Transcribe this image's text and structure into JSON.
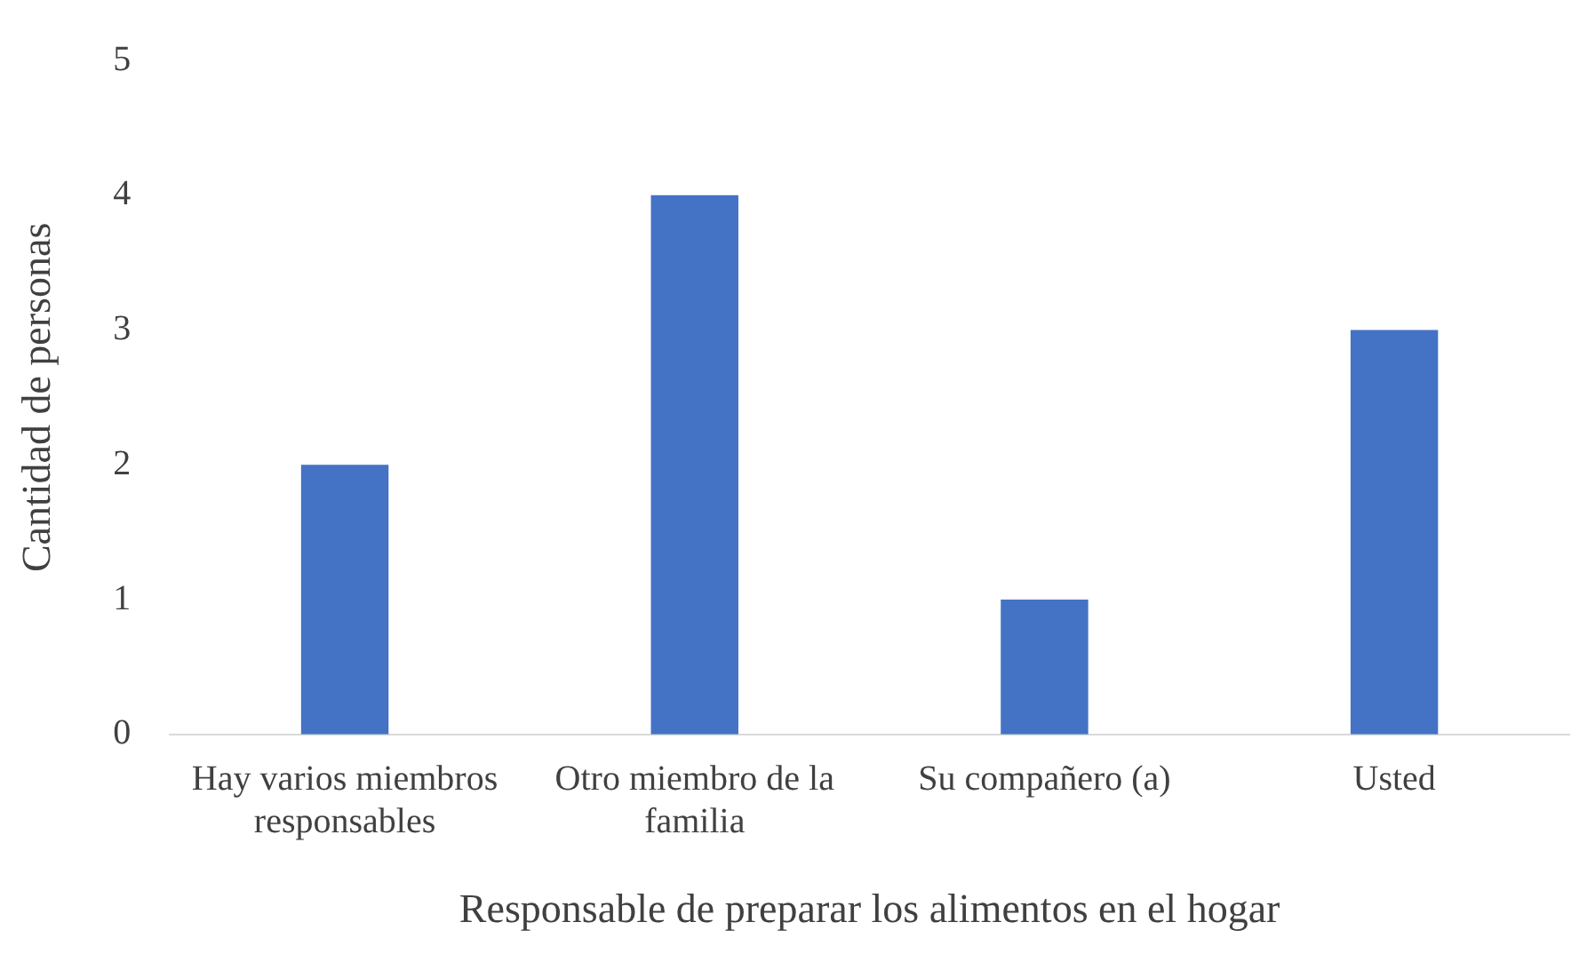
{
  "chart_data": {
    "type": "bar",
    "xlabel": "Responsable de preparar los alimentos en el hogar",
    "ylabel": "Cantidad de personas",
    "categories": [
      "Hay varios miembros responsables",
      "Otro miembro de la familia",
      "Su compañero (a)",
      "Usted"
    ],
    "values": [
      2,
      4,
      1,
      3
    ],
    "color": "#4472c4",
    "ylim": [
      0,
      5
    ],
    "yticks": [
      0,
      1,
      2,
      3,
      4,
      5
    ],
    "grid": false,
    "legend": false
  }
}
